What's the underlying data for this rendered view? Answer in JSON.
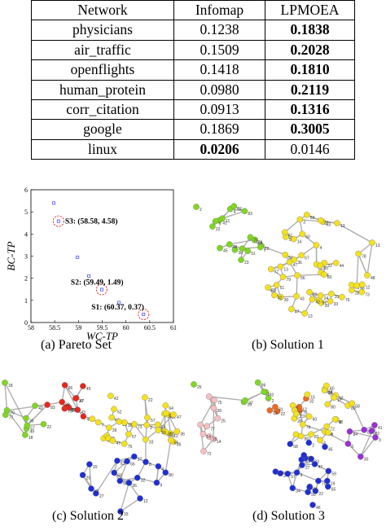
{
  "table": {
    "headers": [
      "Network",
      "Infomap",
      "LPMOEA"
    ],
    "rows": [
      {
        "network": "physicians",
        "infomap": "0.1238",
        "lpmoea": "0.1838",
        "bold": "lpmoea"
      },
      {
        "network": "air_traffic",
        "infomap": "0.1509",
        "lpmoea": "0.2028",
        "bold": "lpmoea"
      },
      {
        "network": "openflights",
        "infomap": "0.1418",
        "lpmoea": "0.1810",
        "bold": "lpmoea"
      },
      {
        "network": "human_protein",
        "infomap": "0.0980",
        "lpmoea": "0.2119",
        "bold": "lpmoea"
      },
      {
        "network": "corr_citation",
        "infomap": "0.0913",
        "lpmoea": "0.1316",
        "bold": "lpmoea"
      },
      {
        "network": "google",
        "infomap": "0.1869",
        "lpmoea": "0.3005",
        "bold": "lpmoea"
      },
      {
        "network": "linux",
        "infomap": "0.0206",
        "lpmoea": "0.0146",
        "bold": "infomap"
      }
    ]
  },
  "captions": {
    "a": "(a) Pareto Set",
    "b": "(b) Solution 1",
    "c": "(c) Solution 2",
    "d": "(d) Solution 3"
  },
  "chart_data": {
    "type": "scatter",
    "xlabel": "WC-TP",
    "ylabel": "BC-TP",
    "xlim": [
      58,
      61
    ],
    "ylim": [
      0,
      6
    ],
    "xticks": [
      "58",
      "58.5",
      "59",
      "59.5",
      "60",
      "60.5",
      "61"
    ],
    "yticks": [
      "0",
      "1",
      "2",
      "3",
      "4",
      "5",
      "6"
    ],
    "points": [
      {
        "x": 58.48,
        "y": 5.4
      },
      {
        "x": 58.58,
        "y": 4.58
      },
      {
        "x": 58.98,
        "y": 2.95
      },
      {
        "x": 59.22,
        "y": 2.1
      },
      {
        "x": 59.49,
        "y": 1.49
      },
      {
        "x": 59.85,
        "y": 0.9
      },
      {
        "x": 60.37,
        "y": 0.37
      }
    ],
    "highlighted": [
      {
        "label": "S3: (58.58, 4.58)",
        "x": 58.58,
        "y": 4.58
      },
      {
        "label": "S2: (59.49, 1.49)",
        "x": 59.49,
        "y": 1.49
      },
      {
        "label": "S1: (60.37, 0.37)",
        "x": 60.37,
        "y": 0.37
      }
    ]
  },
  "colors": {
    "point": "#3a3aff",
    "highlight_circle": "#e02020",
    "green": "#7fd81f",
    "yellow": "#f5e21a",
    "red": "#e8261c",
    "blue": "#1f2fd6",
    "pink": "#f7c0c0",
    "orange": "#ee6a1f",
    "purple": "#9a2fd8",
    "edge": "#aaaaaa"
  },
  "graphs": {
    "solution1": [
      "green",
      "yellow"
    ],
    "solution2": [
      "green",
      "red",
      "yellow",
      "blue"
    ],
    "solution3": [
      "green",
      "pink",
      "orange",
      "yellow",
      "blue",
      "purple"
    ]
  }
}
